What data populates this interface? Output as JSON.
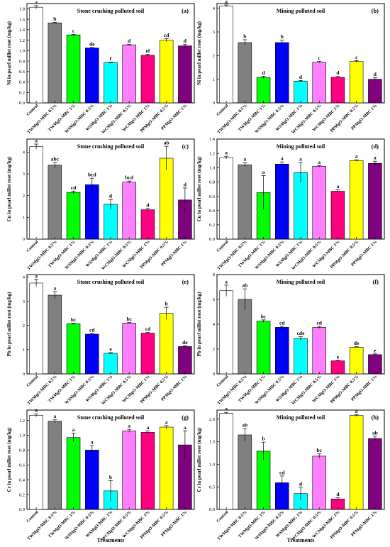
{
  "colors": [
    "#ffffff",
    "#808080",
    "#00ff00",
    "#0000ff",
    "#00ffff",
    "#ff80ff",
    "#ff0080",
    "#ffff00",
    "#800080"
  ],
  "categories": [
    "Control",
    "TWMgO-MBC 0.5%",
    "TWMgO-MBC 1%",
    "WSMgO-MBC 0.5%",
    "WSMgO-MBC 1%",
    "WCMgO-MBC 0.5%",
    "WCMgO-MBC 1%",
    "PPMgO-MBC 0.5%",
    "PPMgO-MBC 1%"
  ],
  "xlabel": "Treatments",
  "chart_data": [
    {
      "type": "bar",
      "panel": "(a)",
      "title": "Stone crushing polluted soil",
      "ylabel": "Ni in pearl millet root (mg/kg)",
      "ylim": [
        0,
        1.9
      ],
      "yticks": [
        "0.0",
        "0.2",
        "0.4",
        "0.6",
        "0.8",
        "1.0",
        "1.2",
        "1.4",
        "1.6",
        "1.8"
      ],
      "values": [
        1.83,
        1.53,
        1.3,
        1.05,
        0.77,
        1.11,
        0.91,
        1.2,
        1.09
      ],
      "errors": [
        0.03,
        0.01,
        0.01,
        0.01,
        0.01,
        0.01,
        0.02,
        0.03,
        0.03
      ],
      "letters": [
        "a",
        "b",
        "c",
        "de",
        "f",
        "d",
        "ef",
        "cd",
        "d"
      ]
    },
    {
      "type": "bar",
      "panel": "(b)",
      "title": "Mining polluted soil",
      "ylabel": "Ni in pearl millet root (mg/kg)",
      "ylim": [
        0,
        4.2
      ],
      "yticks": [
        "0",
        "1",
        "2",
        "3",
        "4"
      ],
      "values": [
        4.1,
        2.55,
        1.08,
        2.55,
        0.92,
        1.72,
        1.08,
        1.75,
        1.0
      ],
      "errors": [
        0.04,
        0.12,
        0.05,
        0.1,
        0.03,
        0.03,
        0.04,
        0.04,
        0.06
      ],
      "letters": [
        "a",
        "b",
        "d",
        "b",
        "d",
        "c",
        "d",
        "c",
        "d"
      ]
    },
    {
      "type": "bar",
      "panel": "(c)",
      "title": "Stone crushing polluted soil",
      "ylabel": "Cu in pearl millet root (mg/kg)",
      "ylim": [
        0,
        4.6
      ],
      "yticks": [
        "0",
        "1",
        "2",
        "3",
        "4"
      ],
      "values": [
        4.25,
        3.4,
        2.15,
        2.5,
        1.6,
        2.62,
        1.35,
        3.72,
        1.8
      ],
      "errors": [
        0.12,
        0.12,
        0.06,
        0.3,
        0.22,
        0.05,
        0.06,
        0.55,
        0.55
      ],
      "letters": [
        "a",
        "abc",
        "cd",
        "bcd",
        "d",
        "bcd",
        "d",
        "ab",
        "d"
      ]
    },
    {
      "type": "bar",
      "panel": "(d)",
      "title": "Mining polluted soil",
      "ylabel": "Cu in pearl millet root (mg/kg)",
      "ylim": [
        0,
        1.4
      ],
      "yticks": [
        "0.0",
        "0.2",
        "0.4",
        "0.6",
        "0.8",
        "1.0",
        "1.2",
        "1.4"
      ],
      "values": [
        1.14,
        1.04,
        0.65,
        1.05,
        0.93,
        1.02,
        0.67,
        1.1,
        1.06
      ],
      "errors": [
        0.02,
        0.03,
        0.24,
        0.03,
        0.14,
        0.01,
        0.02,
        0.01,
        0.03
      ],
      "letters": [
        "a",
        "a",
        "a",
        "a",
        "a",
        "a",
        "a",
        "a",
        "a"
      ]
    },
    {
      "type": "bar",
      "panel": "(e)",
      "title": "Stone crushing polluted soil",
      "ylabel": "Pb in pearl millet root (mg/kg)",
      "ylim": [
        0,
        4.1
      ],
      "yticks": [
        "0",
        "1",
        "2",
        "3",
        "4"
      ],
      "values": [
        3.75,
        3.25,
        2.07,
        1.64,
        0.85,
        2.1,
        1.68,
        2.5,
        1.13
      ],
      "errors": [
        0.15,
        0.15,
        0.02,
        0.03,
        0.03,
        0.02,
        0.03,
        0.25,
        0.03
      ],
      "letters": [
        "a",
        "a",
        "bc",
        "cd",
        "e",
        "bc",
        "cd",
        "b",
        "de"
      ]
    },
    {
      "type": "bar",
      "panel": "(f)",
      "title": "Mining polluted soil",
      "ylabel": "Pb in pearl millet root (mg/kg)",
      "ylim": [
        0,
        8
      ],
      "yticks": [
        "0",
        "2",
        "4",
        "6",
        "8"
      ],
      "values": [
        6.7,
        6.0,
        4.25,
        3.75,
        2.85,
        3.75,
        1.05,
        2.15,
        1.55
      ],
      "errors": [
        0.45,
        0.85,
        0.1,
        0.08,
        0.15,
        0.08,
        0.04,
        0.04,
        0.06
      ],
      "letters": [
        "a",
        "ab",
        "bc",
        "cd",
        "cde",
        "cd",
        "e",
        "de",
        "e"
      ]
    },
    {
      "type": "bar",
      "panel": "(g)",
      "title": "Stone crushing polluted soil",
      "ylabel": "Cr in pearl millet root (mg/kg)",
      "ylim": [
        0,
        1.34
      ],
      "yticks": [
        "0.0",
        "0.2",
        "0.4",
        "0.6",
        "0.8",
        "1.0",
        "1.2"
      ],
      "values": [
        1.27,
        1.19,
        0.97,
        0.8,
        0.25,
        1.06,
        1.04,
        1.11,
        0.87
      ],
      "errors": [
        0.02,
        0.02,
        0.06,
        0.06,
        0.14,
        0.02,
        0.02,
        0.02,
        0.19
      ],
      "letters": [
        "a",
        "a",
        "a",
        "a",
        "b",
        "a",
        "a",
        "a",
        "a"
      ]
    },
    {
      "type": "bar",
      "panel": "(h)",
      "title": "Mining polluted soil",
      "ylabel": "Cr in pearl millet root (mg/kg)",
      "ylim": [
        0,
        2.2
      ],
      "yticks": [
        "0.0",
        "0.5",
        "1.0",
        "1.5",
        "2.0"
      ],
      "values": [
        2.13,
        1.65,
        1.29,
        0.59,
        0.35,
        1.18,
        0.23,
        2.08,
        1.57
      ],
      "errors": [
        0.02,
        0.14,
        0.2,
        0.15,
        0.14,
        0.05,
        0.03,
        0.02,
        0.05
      ],
      "letters": [
        "a",
        "ab",
        "b",
        "cd",
        "d",
        "bc",
        "d",
        "a",
        "ab"
      ]
    }
  ]
}
